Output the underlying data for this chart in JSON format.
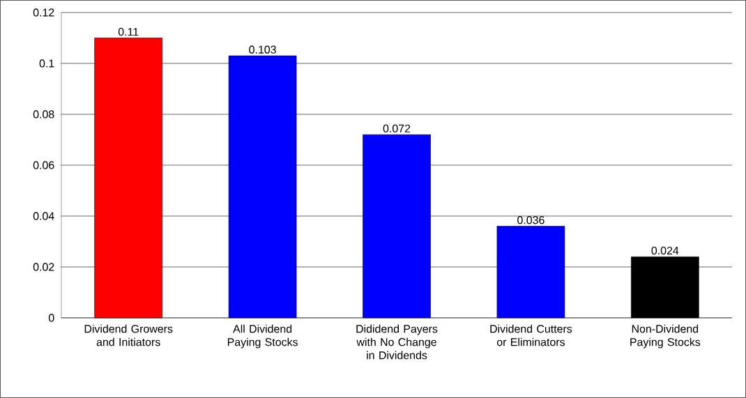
{
  "chart_data": {
    "type": "bar",
    "categories": [
      "Dividend Growers and Initiators",
      "All Dividend Paying Stocks",
      "Dididend Payers with No Change in Dividends",
      "Dividend Cutters or Eliminators",
      "Non-Dividend Paying Stocks"
    ],
    "values": [
      0.11,
      0.103,
      0.072,
      0.036,
      0.024
    ],
    "colors": [
      "#ff0000",
      "#0000ff",
      "#0000ff",
      "#0000ff",
      "#000000"
    ],
    "ylim": [
      0,
      0.12
    ],
    "yticks": [
      0,
      0.02,
      0.04,
      0.06,
      0.08,
      0.1,
      0.12
    ],
    "grid": "y",
    "data_labels": true
  }
}
